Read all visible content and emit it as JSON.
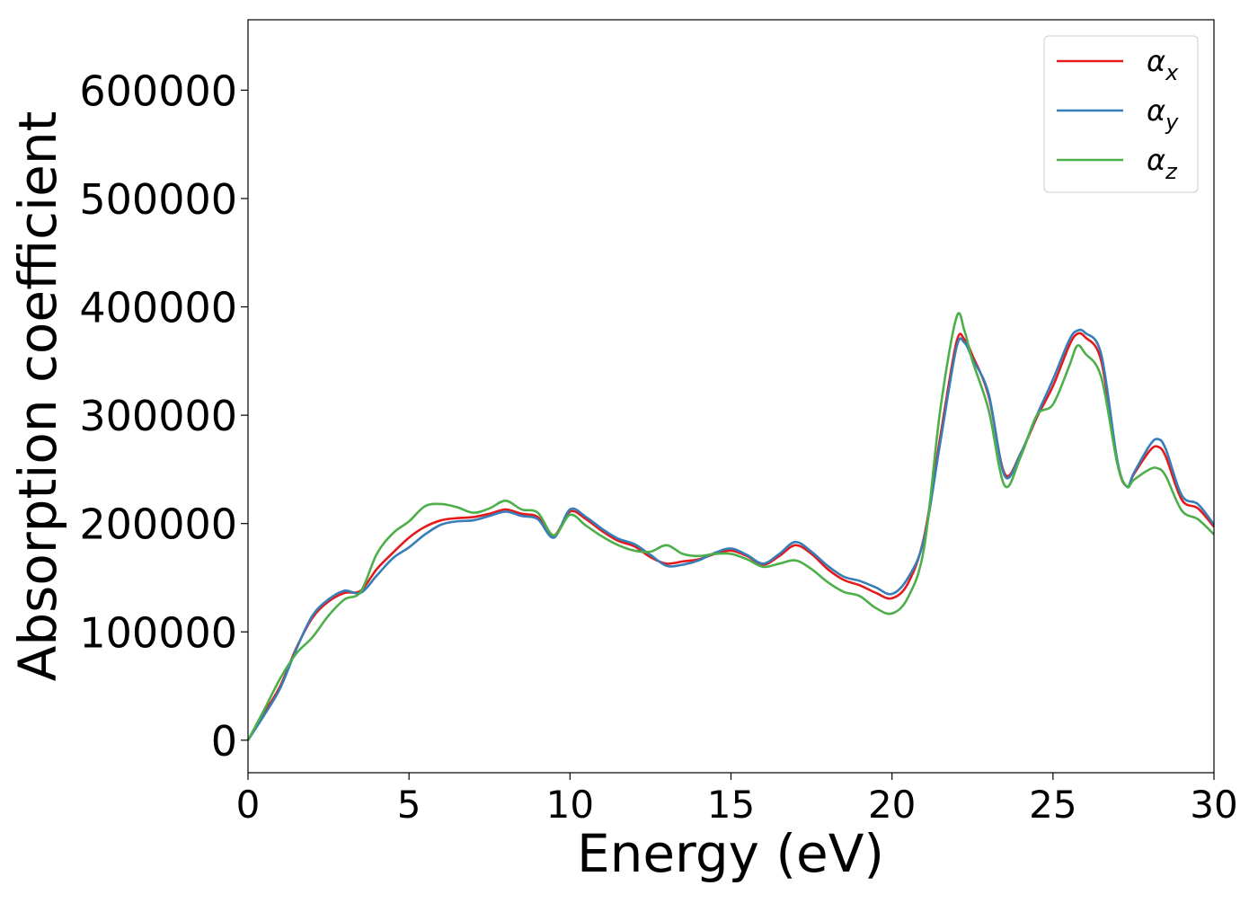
{
  "chart_data": {
    "type": "line",
    "title": "",
    "xlabel": "Energy (eV)",
    "ylabel": "Absorption coefficient",
    "xlim": [
      0,
      30
    ],
    "ylim": [
      -30000,
      665000
    ],
    "xticks": [
      "0",
      "5",
      "10",
      "15",
      "20",
      "25",
      "30"
    ],
    "yticks": [
      "0",
      "100000",
      "200000",
      "300000",
      "400000",
      "500000",
      "600000"
    ],
    "grid": false,
    "legend_position": "top-right",
    "series": [
      {
        "name": "α",
        "subscript": "x",
        "color": "#e41a1c",
        "x": [
          0,
          0.5,
          1,
          1.5,
          2,
          2.5,
          3,
          3.5,
          4,
          4.5,
          5,
          5.5,
          6,
          6.5,
          7,
          7.5,
          8,
          8.5,
          9,
          9.5,
          10,
          10.5,
          11,
          11.5,
          12,
          12.5,
          13,
          13.5,
          14,
          14.5,
          15,
          15.5,
          16,
          16.5,
          17,
          17.5,
          18,
          18.5,
          19,
          19.5,
          20,
          20.5,
          21,
          21.5,
          22,
          22.25,
          22.5,
          23,
          23.5,
          24,
          24.5,
          25,
          25.5,
          25.75,
          26,
          26.5,
          27,
          27.3,
          27.5,
          28,
          28.25,
          28.5,
          29,
          29.5,
          30
        ],
        "y": [
          0,
          25000,
          50000,
          85000,
          113000,
          128000,
          136000,
          138000,
          158000,
          173000,
          187000,
          197000,
          203000,
          205000,
          206000,
          209000,
          213000,
          209000,
          206000,
          189000,
          211000,
          204000,
          193000,
          184000,
          179000,
          169000,
          163000,
          165000,
          167000,
          172000,
          175000,
          170000,
          162000,
          170000,
          180000,
          172000,
          158000,
          148000,
          143000,
          136000,
          131000,
          145000,
          188000,
          280000,
          367000,
          370000,
          355000,
          318000,
          246000,
          265000,
          298000,
          327000,
          364000,
          375000,
          372000,
          350000,
          256000,
          234000,
          245000,
          267000,
          271000,
          262000,
          222000,
          214000,
          197000
        ]
      },
      {
        "name": "α",
        "subscript": "y",
        "color": "#377eb8",
        "x": [
          0,
          0.5,
          1,
          1.5,
          2,
          2.5,
          3,
          3.5,
          4,
          4.5,
          5,
          5.5,
          6,
          6.5,
          7,
          7.5,
          8,
          8.5,
          9,
          9.5,
          10,
          10.5,
          11,
          11.5,
          12,
          12.5,
          13,
          13.5,
          14,
          14.5,
          15,
          15.5,
          16,
          16.5,
          17,
          17.5,
          18,
          18.5,
          19,
          19.5,
          20,
          20.5,
          21,
          21.5,
          22,
          22.25,
          22.5,
          23,
          23.5,
          24,
          24.5,
          25,
          25.5,
          25.75,
          26,
          26.5,
          27,
          27.3,
          27.5,
          28,
          28.25,
          28.5,
          29,
          29.5,
          30
        ],
        "y": [
          0,
          23000,
          48000,
          84000,
          115000,
          130000,
          138000,
          136000,
          152000,
          168000,
          178000,
          190000,
          199000,
          202000,
          203000,
          207000,
          211000,
          207000,
          204000,
          187000,
          213000,
          206000,
          195000,
          186000,
          181000,
          171000,
          161000,
          162000,
          166000,
          173000,
          177000,
          171000,
          163000,
          172000,
          183000,
          174000,
          161000,
          151000,
          147000,
          141000,
          135000,
          150000,
          186000,
          275000,
          362000,
          367000,
          352000,
          320000,
          244000,
          265000,
          300000,
          333000,
          369000,
          378000,
          376000,
          356000,
          258000,
          234000,
          246000,
          272000,
          278000,
          269000,
          226000,
          218000,
          199000
        ]
      },
      {
        "name": "α",
        "subscript": "z",
        "color": "#4daf4a",
        "x": [
          0,
          0.5,
          1,
          1.5,
          2,
          2.5,
          3,
          3.5,
          4,
          4.5,
          5,
          5.5,
          6,
          6.5,
          7,
          7.5,
          8,
          8.5,
          9,
          9.5,
          10,
          10.5,
          11,
          11.5,
          12,
          12.5,
          13,
          13.5,
          14,
          14.5,
          15,
          15.5,
          16,
          16.5,
          17,
          17.5,
          18,
          18.5,
          19,
          19.5,
          20,
          20.5,
          21,
          21.5,
          22,
          22.25,
          22.5,
          23,
          23.5,
          24,
          24.5,
          25,
          25.5,
          25.75,
          26,
          26.5,
          27,
          27.3,
          27.5,
          28,
          28.25,
          28.5,
          29,
          29.5,
          30
        ],
        "y": [
          0,
          28000,
          57000,
          80000,
          95000,
          115000,
          130000,
          137000,
          172000,
          191000,
          202000,
          216000,
          218000,
          215000,
          210000,
          214000,
          221000,
          213000,
          210000,
          189000,
          208000,
          198000,
          188000,
          180000,
          175000,
          174000,
          180000,
          172000,
          170000,
          172000,
          172000,
          167000,
          160000,
          163000,
          166000,
          158000,
          146000,
          137000,
          133000,
          122000,
          117000,
          132000,
          178000,
          305000,
          390000,
          378000,
          350000,
          305000,
          235000,
          262000,
          300000,
          310000,
          345000,
          364000,
          357000,
          335000,
          255000,
          234000,
          240000,
          250000,
          251000,
          244000,
          212000,
          204000,
          190000
        ]
      }
    ]
  }
}
